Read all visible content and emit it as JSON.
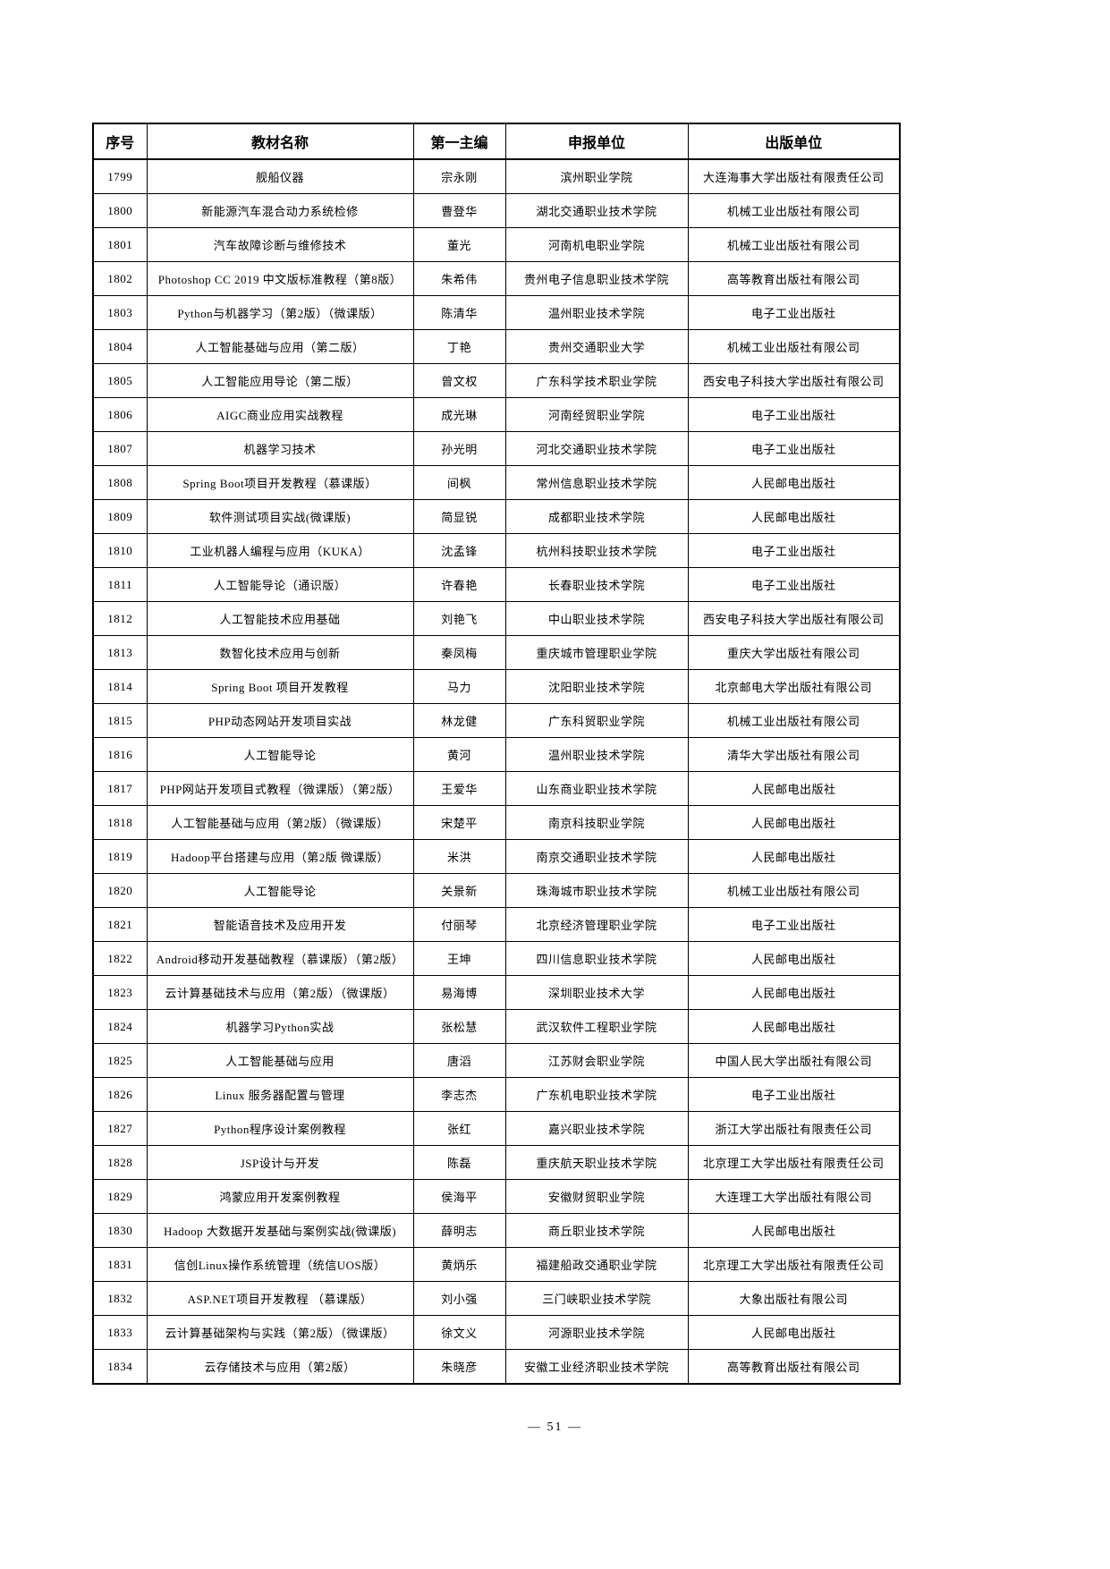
{
  "page": {
    "footer_page_number": "— 51 —"
  },
  "table": {
    "headers": [
      "序号",
      "教材名称",
      "第一主编",
      "申报单位",
      "出版单位"
    ],
    "rows": [
      [
        "1799",
        "舰船仪器",
        "宗永刚",
        "滨州职业学院",
        "大连海事大学出版社有限责任公司"
      ],
      [
        "1800",
        "新能源汽车混合动力系统检修",
        "曹登华",
        "湖北交通职业技术学院",
        "机械工业出版社有限公司"
      ],
      [
        "1801",
        "汽车故障诊断与维修技术",
        "董光",
        "河南机电职业学院",
        "机械工业出版社有限公司"
      ],
      [
        "1802",
        "Photoshop CC 2019 中文版标准教程（第8版）",
        "朱希伟",
        "贵州电子信息职业技术学院",
        "高等教育出版社有限公司"
      ],
      [
        "1803",
        "Python与机器学习（第2版）（微课版）",
        "陈清华",
        "温州职业技术学院",
        "电子工业出版社"
      ],
      [
        "1804",
        "人工智能基础与应用（第二版）",
        "丁艳",
        "贵州交通职业大学",
        "机械工业出版社有限公司"
      ],
      [
        "1805",
        "人工智能应用导论（第二版）",
        "曾文权",
        "广东科学技术职业学院",
        "西安电子科技大学出版社有限公司"
      ],
      [
        "1806",
        "AIGC商业应用实战教程",
        "成光琳",
        "河南经贸职业学院",
        "电子工业出版社"
      ],
      [
        "1807",
        "机器学习技术",
        "孙光明",
        "河北交通职业技术学院",
        "电子工业出版社"
      ],
      [
        "1808",
        "Spring Boot项目开发教程（慕课版）",
        "间枫",
        "常州信息职业技术学院",
        "人民邮电出版社"
      ],
      [
        "1809",
        "软件测试项目实战(微课版)",
        "简显锐",
        "成都职业技术学院",
        "人民邮电出版社"
      ],
      [
        "1810",
        "工业机器人编程与应用（KUKA）",
        "沈孟锋",
        "杭州科技职业技术学院",
        "电子工业出版社"
      ],
      [
        "1811",
        "人工智能导论（通识版）",
        "许春艳",
        "长春职业技术学院",
        "电子工业出版社"
      ],
      [
        "1812",
        "人工智能技术应用基础",
        "刘艳飞",
        "中山职业技术学院",
        "西安电子科技大学出版社有限公司"
      ],
      [
        "1813",
        "数智化技术应用与创新",
        "秦凤梅",
        "重庆城市管理职业学院",
        "重庆大学出版社有限公司"
      ],
      [
        "1814",
        "Spring Boot 项目开发教程",
        "马力",
        "沈阳职业技术学院",
        "北京邮电大学出版社有限公司"
      ],
      [
        "1815",
        "PHP动态网站开发项目实战",
        "林龙健",
        "广东科贸职业学院",
        "机械工业出版社有限公司"
      ],
      [
        "1816",
        "人工智能导论",
        "黄河",
        "温州职业技术学院",
        "清华大学出版社有限公司"
      ],
      [
        "1817",
        "PHP网站开发项目式教程（微课版）（第2版）",
        "王爱华",
        "山东商业职业技术学院",
        "人民邮电出版社"
      ],
      [
        "1818",
        "人工智能基础与应用（第2版）（微课版）",
        "宋楚平",
        "南京科技职业学院",
        "人民邮电出版社"
      ],
      [
        "1819",
        "Hadoop平台搭建与应用（第2版 微课版）",
        "米洪",
        "南京交通职业技术学院",
        "人民邮电出版社"
      ],
      [
        "1820",
        "人工智能导论",
        "关景新",
        "珠海城市职业技术学院",
        "机械工业出版社有限公司"
      ],
      [
        "1821",
        "智能语音技术及应用开发",
        "付丽琴",
        "北京经济管理职业学院",
        "电子工业出版社"
      ],
      [
        "1822",
        "Android移动开发基础教程（慕课版）（第2版）",
        "王坤",
        "四川信息职业技术学院",
        "人民邮电出版社"
      ],
      [
        "1823",
        "云计算基础技术与应用（第2版）（微课版）",
        "易海博",
        "深圳职业技术大学",
        "人民邮电出版社"
      ],
      [
        "1824",
        "机器学习Python实战",
        "张松慧",
        "武汉软件工程职业学院",
        "人民邮电出版社"
      ],
      [
        "1825",
        "人工智能基础与应用",
        "唐滔",
        "江苏财会职业学院",
        "中国人民大学出版社有限公司"
      ],
      [
        "1826",
        "Linux 服务器配置与管理",
        "李志杰",
        "广东机电职业技术学院",
        "电子工业出版社"
      ],
      [
        "1827",
        "Python程序设计案例教程",
        "张红",
        "嘉兴职业技术学院",
        "浙江大学出版社有限责任公司"
      ],
      [
        "1828",
        "JSP设计与开发",
        "陈磊",
        "重庆航天职业技术学院",
        "北京理工大学出版社有限责任公司"
      ],
      [
        "1829",
        "鸿蒙应用开发案例教程",
        "侯海平",
        "安徽财贸职业学院",
        "大连理工大学出版社有限公司"
      ],
      [
        "1830",
        "Hadoop 大数据开发基础与案例实战(微课版)",
        "薛明志",
        "商丘职业技术学院",
        "人民邮电出版社"
      ],
      [
        "1831",
        "信创Linux操作系统管理（统信UOS版）",
        "黄炳乐",
        "福建船政交通职业学院",
        "北京理工大学出版社有限责任公司"
      ],
      [
        "1832",
        "ASP.NET项目开发教程 （慕课版）",
        "刘小强",
        "三门峡职业技术学院",
        "大象出版社有限公司"
      ],
      [
        "1833",
        "云计算基础架构与实践（第2版）（微课版）",
        "徐文义",
        "河源职业技术学院",
        "人民邮电出版社"
      ],
      [
        "1834",
        "云存储技术与应用（第2版）",
        "朱晓彦",
        "安徽工业经济职业技术学院",
        "高等教育出版社有限公司"
      ]
    ]
  }
}
